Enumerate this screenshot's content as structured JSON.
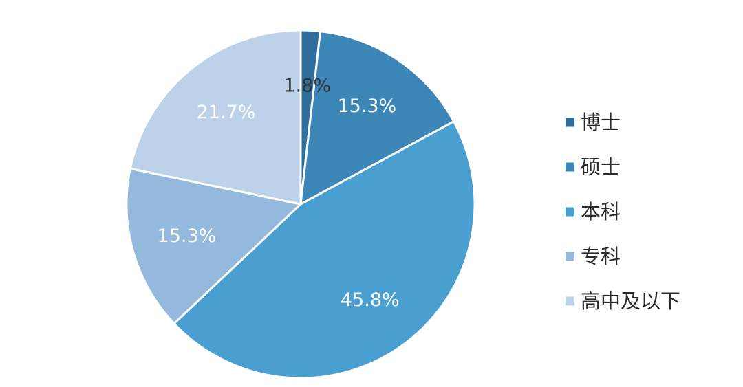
{
  "chart_data": {
    "type": "pie",
    "title": "",
    "legend_position": "right",
    "slices": [
      {
        "name": "博士",
        "value": 1.8,
        "label": "1.8%",
        "color": "#2e6f9e",
        "label_color": "#333333"
      },
      {
        "name": "硕士",
        "value": 15.3,
        "label": "15.3%",
        "color": "#3d86b8",
        "label_color": "#ffffff"
      },
      {
        "name": "本科",
        "value": 45.8,
        "label": "45.8%",
        "color": "#4a9fd1",
        "label_color": "#ffffff"
      },
      {
        "name": "专科",
        "value": 15.3,
        "label": "15.3%",
        "color": "#94b9dc",
        "label_color": "#ffffff"
      },
      {
        "name": "高中及以下",
        "value": 21.7,
        "label": "21.7%",
        "color": "#bdd2e8",
        "label_color": "#ffffff"
      }
    ]
  }
}
